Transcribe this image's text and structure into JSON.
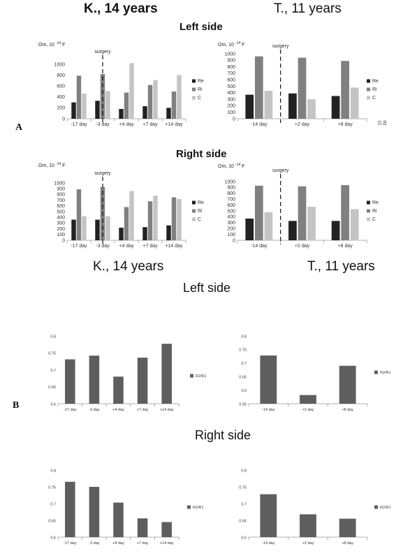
{
  "titles": {
    "top_left": "K., 14 years",
    "top_right": "T., 11 years",
    "mid_left": "K., 14 years",
    "mid_right": "T., 11 years"
  },
  "sections": {
    "a_left": "Left side",
    "a_right": "Right side",
    "b_left": "Left side",
    "b_right": "Right side"
  },
  "panels": {
    "a": "A",
    "b": "B"
  },
  "stray_text": "0.8",
  "colors": {
    "Re": "#222222",
    "Ri": "#808080",
    "C": "#c4c4c4",
    "R2R1": "#5e5e5e",
    "axis": "#999999"
  },
  "chart_data": [
    {
      "id": "A-left-K",
      "type": "bar",
      "ylabel": "Om, 10",
      "ylabel_exp": "-14",
      "ylabel_unit": "F",
      "marker": "surgery",
      "ylim": [
        0,
        1000
      ],
      "yticks": [
        0,
        200,
        400,
        600,
        800,
        1000
      ],
      "categories": [
        "-17 day",
        "-3 day",
        "+4 day",
        "+7 day",
        "+14 day"
      ],
      "series": [
        {
          "name": "Re",
          "values": [
            300,
            330,
            180,
            230,
            200
          ]
        },
        {
          "name": "Ri",
          "values": [
            790,
            820,
            480,
            620,
            500
          ]
        },
        {
          "name": "C",
          "values": [
            460,
            510,
            1020,
            710,
            800
          ]
        }
      ],
      "legend": "right"
    },
    {
      "id": "A-left-T",
      "type": "bar",
      "ylabel": "Om, 10",
      "ylabel_exp": "-14",
      "ylabel_unit": "F",
      "marker": "surgery",
      "ylim": [
        0,
        1000
      ],
      "yticks": [
        0,
        100,
        200,
        300,
        400,
        500,
        600,
        700,
        800,
        900,
        1000
      ],
      "categories": [
        "-14 day",
        "+2 day",
        "+8 day"
      ],
      "series": [
        {
          "name": "Re",
          "values": [
            370,
            390,
            350
          ]
        },
        {
          "name": "Ri",
          "values": [
            960,
            940,
            890
          ]
        },
        {
          "name": "C",
          "values": [
            430,
            300,
            480
          ]
        }
      ],
      "legend": "right"
    },
    {
      "id": "A-right-K",
      "type": "bar",
      "ylabel": "Om, 10",
      "ylabel_exp": "-14",
      "ylabel_unit": "F",
      "marker": "surgery",
      "ylim": [
        0,
        1000
      ],
      "yticks": [
        0,
        100,
        200,
        300,
        400,
        500,
        600,
        700,
        800,
        900,
        1000
      ],
      "categories": [
        "-17 day",
        "-3 day",
        "+4 day",
        "+7 day",
        "+14 day"
      ],
      "series": [
        {
          "name": "Re",
          "values": [
            360,
            360,
            220,
            230,
            260
          ]
        },
        {
          "name": "Ri",
          "values": [
            890,
            930,
            580,
            680,
            750
          ]
        },
        {
          "name": "C",
          "values": [
            420,
            420,
            860,
            780,
            720
          ]
        }
      ],
      "legend": "right"
    },
    {
      "id": "A-right-T",
      "type": "bar",
      "ylabel": "Om, 10",
      "ylabel_exp": "-14",
      "ylabel_unit": "F",
      "marker": "surgery",
      "ylim": [
        0,
        1000
      ],
      "yticks": [
        0,
        100,
        200,
        300,
        400,
        500,
        600,
        700,
        800,
        900,
        1000
      ],
      "categories": [
        "-14 day",
        "+2 day",
        "+8 day"
      ],
      "series": [
        {
          "name": "Re",
          "values": [
            370,
            330,
            330
          ]
        },
        {
          "name": "Ri",
          "values": [
            930,
            920,
            940
          ]
        },
        {
          "name": "C",
          "values": [
            480,
            570,
            530
          ]
        }
      ],
      "legend": "right"
    },
    {
      "id": "B-left-K",
      "type": "bar",
      "ylim": [
        0.6,
        0.8
      ],
      "yticks": [
        "0.6",
        "0.65",
        "0.7",
        "0.75",
        "0.8"
      ],
      "categories": [
        "-17 day",
        "-3 day",
        "+4 day",
        "+7 day",
        "+14 day"
      ],
      "series": [
        {
          "name": "R2/R1",
          "values": [
            0.731,
            0.742,
            0.68,
            0.736,
            0.777
          ]
        }
      ],
      "legend": "right"
    },
    {
      "id": "B-left-T",
      "type": "bar",
      "ylim": [
        0.55,
        0.8
      ],
      "yticks": [
        "0.55",
        "0.6",
        "0.65",
        "0.7",
        "0.75",
        "0.8"
      ],
      "categories": [
        "-14 day",
        "+2 day",
        "+8 day"
      ],
      "series": [
        {
          "name": "R2/R1",
          "values": [
            0.728,
            0.582,
            0.69
          ]
        }
      ],
      "legend": "right"
    },
    {
      "id": "B-right-K",
      "type": "bar",
      "ylim": [
        0.6,
        0.8
      ],
      "yticks": [
        "0.6",
        "0.65",
        "0.7",
        "0.75",
        "0.8"
      ],
      "categories": [
        "-17 day",
        "-3 day",
        "+4 day",
        "+7 day",
        "+14 day"
      ],
      "series": [
        {
          "name": "R2/R1",
          "values": [
            0.765,
            0.75,
            0.703,
            0.656,
            0.645
          ]
        }
      ],
      "legend": "right"
    },
    {
      "id": "B-right-T",
      "type": "bar",
      "ylim": [
        0.6,
        0.8
      ],
      "yticks": [
        "0.6",
        "0.65",
        "0.7",
        "0.75",
        "0.8"
      ],
      "categories": [
        "-14 day",
        "+2 day",
        "+8 day"
      ],
      "series": [
        {
          "name": "R2/R1",
          "values": [
            0.728,
            0.668,
            0.655
          ]
        }
      ],
      "legend": "right"
    }
  ]
}
